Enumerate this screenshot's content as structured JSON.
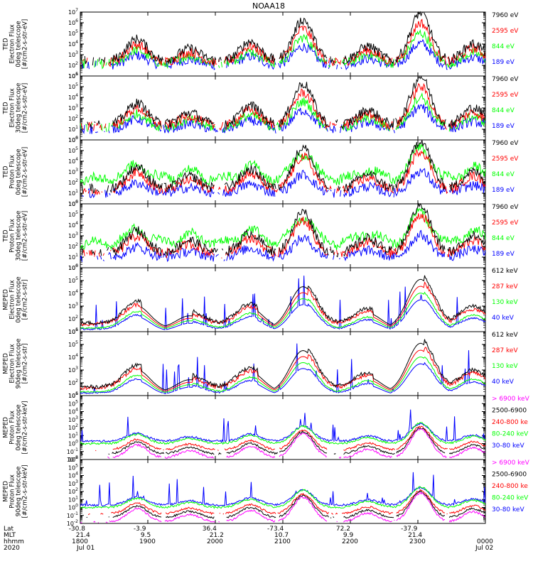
{
  "chart_data": {
    "type": "line",
    "title": "NOAA18",
    "x_range": [
      "18:00",
      "00:00"
    ],
    "x_ticks": [
      "1800",
      "1900",
      "2000",
      "2100",
      "2200",
      "2300",
      "0000"
    ],
    "time_axis": {
      "labels": [
        "Lat",
        "MLT",
        "hhmm",
        "2020"
      ],
      "lat": [
        "-30.8",
        "-3.9",
        "36.4",
        "-73.4",
        "72.2",
        "-37.9"
      ],
      "mlt": [
        "21.4",
        "9.5",
        "21.2",
        "10.7",
        "9.9",
        "21.4"
      ],
      "hhmm": [
        "1800",
        "1900",
        "2000",
        "2100",
        "2200",
        "2300",
        "0000"
      ],
      "date_start": "Jul 01",
      "date_end": "Jul 02"
    },
    "panels": [
      {
        "ylabel": [
          "TED",
          "Electron Flux",
          "0deg telescope",
          "[#/cm2-s-str-eV]"
        ],
        "yscale": "log",
        "ylim": [
          1,
          7
        ],
        "series": [
          {
            "name": "7960 eV",
            "color": "#000000"
          },
          {
            "name": "2595 eV",
            "color": "#ff0000"
          },
          {
            "name": "844 eV",
            "color": "#00ff00"
          },
          {
            "name": "189 eV",
            "color": "#0000ff"
          }
        ]
      },
      {
        "ylabel": [
          "TED",
          "Electron Flux",
          "30deg telescope",
          "[#/cm2-s-str-eV]"
        ],
        "yscale": "log",
        "ylim": [
          0,
          6
        ],
        "series": [
          {
            "name": "7960 eV",
            "color": "#000000"
          },
          {
            "name": "2595 eV",
            "color": "#ff0000"
          },
          {
            "name": "844 eV",
            "color": "#00ff00"
          },
          {
            "name": "189 eV",
            "color": "#0000ff"
          }
        ]
      },
      {
        "ylabel": [
          "TED",
          "Proton Flux",
          "0deg telescope",
          "[#/cm2-s-str-eV]"
        ],
        "yscale": "log",
        "ylim": [
          0,
          6
        ],
        "series": [
          {
            "name": "7960 eV",
            "color": "#000000"
          },
          {
            "name": "2595 eV",
            "color": "#ff0000"
          },
          {
            "name": "844 eV",
            "color": "#00ff00"
          },
          {
            "name": "189 eV",
            "color": "#0000ff"
          }
        ]
      },
      {
        "ylabel": [
          "TED",
          "Proton Flux",
          "30deg telescope",
          "[#/cm2-s-str-eV]"
        ],
        "yscale": "log",
        "ylim": [
          0,
          6
        ],
        "series": [
          {
            "name": "7960 eV",
            "color": "#000000"
          },
          {
            "name": "2595 eV",
            "color": "#ff0000"
          },
          {
            "name": "844 eV",
            "color": "#00ff00"
          },
          {
            "name": "189 eV",
            "color": "#0000ff"
          }
        ]
      },
      {
        "ylabel": [
          "MEPED",
          "Electron Flux",
          "0deg telescope",
          "[#/cm2-s-str]"
        ],
        "yscale": "log",
        "ylim": [
          1,
          6
        ],
        "series": [
          {
            "name": "612 keV",
            "color": "#000000"
          },
          {
            "name": "287 keV",
            "color": "#ff0000"
          },
          {
            "name": "130 keV",
            "color": "#00ff00"
          },
          {
            "name": "40 keV",
            "color": "#0000ff"
          }
        ]
      },
      {
        "ylabel": [
          "MEPED",
          "Electron Flux",
          "90deg telescope",
          "[#/cm2-s-str]"
        ],
        "yscale": "log",
        "ylim": [
          1,
          6
        ],
        "series": [
          {
            "name": "612 keV",
            "color": "#000000"
          },
          {
            "name": "287 keV",
            "color": "#ff0000"
          },
          {
            "name": "130 keV",
            "color": "#00ff00"
          },
          {
            "name": "40 keV",
            "color": "#0000ff"
          }
        ]
      },
      {
        "ylabel": [
          "MEPED",
          "Proton Flux",
          "0deg telescope",
          "[#/cm2-s-str-keV]"
        ],
        "yscale": "log",
        "ylim": [
          -2,
          6
        ],
        "series": [
          {
            "name": "> 6900 keV",
            "color": "#ff00ff"
          },
          {
            "name": "2500-6900",
            "color": "#000000"
          },
          {
            "name": "240-800 ke",
            "color": "#ff0000"
          },
          {
            "name": "80-240 keV",
            "color": "#00ff00"
          },
          {
            "name": "30-80 keV",
            "color": "#0000ff"
          }
        ]
      },
      {
        "ylabel": [
          "MEPED",
          "Proton Flux",
          "90deg telescope",
          "[#/cm2-s-str-keV]"
        ],
        "yscale": "log",
        "ylim": [
          -2,
          6
        ],
        "series": [
          {
            "name": "> 6900 keV",
            "color": "#ff00ff"
          },
          {
            "name": "2500-6900",
            "color": "#000000"
          },
          {
            "name": "240-800 ke",
            "color": "#ff0000"
          },
          {
            "name": "80-240 keV",
            "color": "#00ff00"
          },
          {
            "name": "30-80 keV",
            "color": "#0000ff"
          }
        ]
      }
    ],
    "passes": [
      {
        "t": 0.14,
        "kind": "north",
        "strength": 0.45
      },
      {
        "t": 0.27,
        "kind": "south",
        "strength": 0.25
      },
      {
        "t": 0.42,
        "kind": "north",
        "strength": 0.4
      },
      {
        "t": 0.55,
        "kind": "south",
        "strength": 0.85
      },
      {
        "t": 0.71,
        "kind": "north",
        "strength": 0.3
      },
      {
        "t": 0.84,
        "kind": "south",
        "strength": 1.0
      },
      {
        "t": 0.97,
        "kind": "north",
        "strength": 0.35
      }
    ]
  }
}
